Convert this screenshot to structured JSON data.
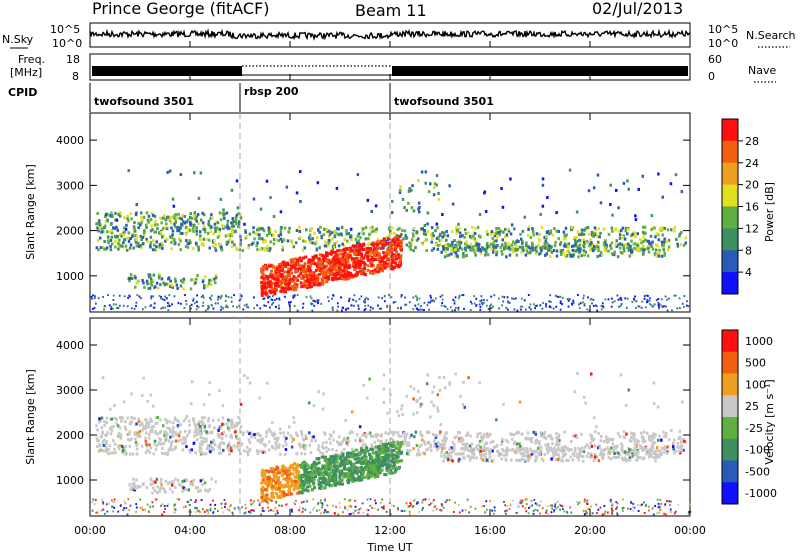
{
  "header": {
    "station": "Prince George (fitACF)",
    "beam": "Beam 11",
    "date": "02/Jul/2013"
  },
  "strips": {
    "nsky_label": "N.Sky",
    "nsky_ticks": [
      "10^5",
      "10^0"
    ],
    "nsearch_label": "N.Search",
    "nsearch_ticks": [
      "10^5",
      "10^0"
    ],
    "freq_label_line1": "Freq.",
    "freq_label_line2": "[MHz]",
    "freq_ticks": [
      "18",
      "8"
    ],
    "nave_label": "Nave",
    "nave_ticks": [
      "60",
      "0"
    ],
    "cpid_label": "CPID",
    "cpid_segments": [
      {
        "name": "twofsound 3501",
        "start": 0,
        "end": 6
      },
      {
        "name": "rbsp 200",
        "start": 6,
        "end": 12
      },
      {
        "name": "twofsound 3501",
        "start": 12,
        "end": 24
      }
    ]
  },
  "chart_data": [
    {
      "type": "heatmap",
      "title": "",
      "xlabel": "",
      "ylabel": "Slant Range [km]",
      "y_ticks": [
        "1000",
        "2000",
        "3000",
        "4000"
      ],
      "ylim": [
        200,
        4600
      ],
      "xlim": [
        0,
        24
      ],
      "colorbar_label": "Power [dB]",
      "colorbar_ticks": [
        "4",
        "8",
        "12",
        "16",
        "20",
        "24",
        "28"
      ],
      "colorbar_colors": [
        "#1010ff",
        "#2a5bb8",
        "#3f8f5f",
        "#5fb040",
        "#e0e020",
        "#f0a020",
        "#f06010",
        "#ff1010"
      ]
    },
    {
      "type": "heatmap",
      "title": "",
      "xlabel": "Time UT",
      "ylabel": "Slant Range [km]",
      "y_ticks": [
        "1000",
        "2000",
        "3000",
        "4000"
      ],
      "ylim": [
        200,
        4600
      ],
      "xlim": [
        0,
        24
      ],
      "x_ticks": [
        "00:00",
        "04:00",
        "08:00",
        "12:00",
        "16:00",
        "20:00",
        "00:00"
      ],
      "colorbar_label": "Velocity [m s⁻¹]",
      "colorbar_ticks": [
        "1000",
        "500",
        "100",
        "25",
        "-25",
        "-100",
        "-500",
        "-1000"
      ],
      "colorbar_colors": [
        "#1010ff",
        "#2a5bb8",
        "#3f8f5f",
        "#5fb040",
        "#c8c8c8",
        "#f0a020",
        "#f06010",
        "#ff1010"
      ]
    }
  ]
}
